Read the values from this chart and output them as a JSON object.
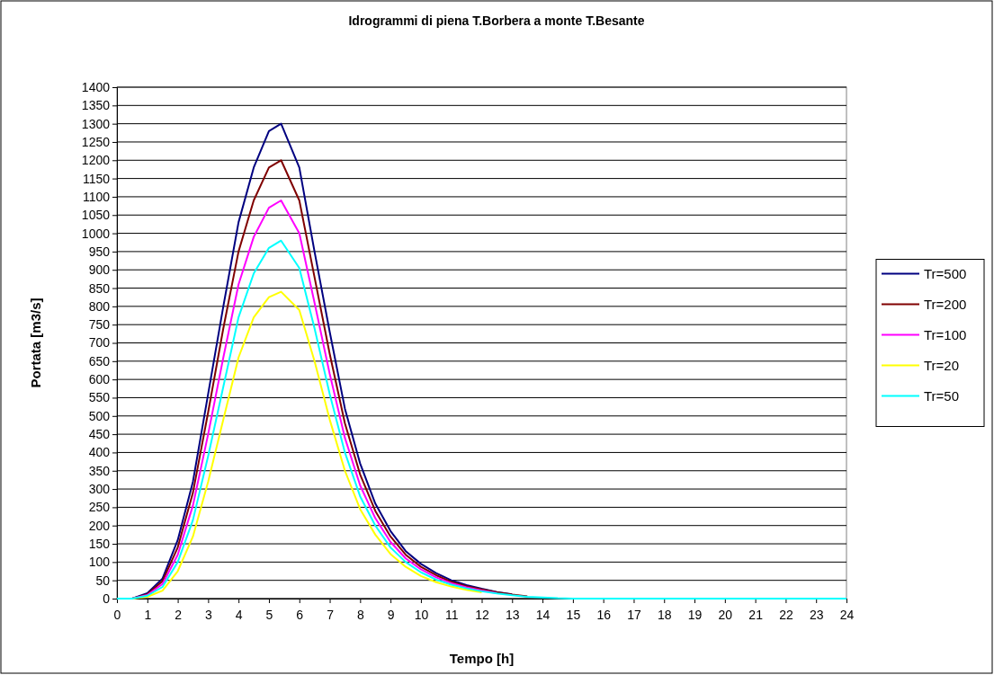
{
  "chart_data": {
    "type": "line",
    "title": "Idrogrammi di piena T.Borbera a monte T.Besante",
    "xlabel": "Tempo [h]",
    "ylabel": "Portata [m3/s]",
    "x": [
      0,
      0.5,
      1,
      1.5,
      2,
      2.5,
      3,
      3.5,
      4,
      4.5,
      5,
      5.4,
      6,
      6.5,
      7,
      7.5,
      8,
      8.5,
      9,
      9.5,
      10,
      10.5,
      11,
      11.5,
      12,
      12.5,
      13,
      13.5,
      14,
      14.5,
      15,
      24
    ],
    "series": [
      {
        "name": "Tr=500",
        "color": "#000080",
        "x": [
          0.5,
          1,
          1.5,
          2,
          2.5,
          3,
          3.5,
          4,
          4.5,
          5,
          5.4,
          6,
          6.5,
          7,
          7.5,
          8,
          8.5,
          9,
          9.5,
          10,
          10.5,
          11,
          11.5,
          12,
          12.5,
          13
        ],
        "values": [
          0,
          15,
          55,
          160,
          320,
          560,
          800,
          1030,
          1180,
          1280,
          1300,
          1180,
          950,
          730,
          520,
          370,
          260,
          185,
          130,
          95,
          70,
          50,
          37,
          27,
          18,
          12
        ]
      },
      {
        "name": "Tr=200",
        "color": "#800000",
        "x": [
          0.5,
          1,
          1.5,
          2,
          2.5,
          3,
          3.5,
          4,
          4.5,
          5,
          5.4,
          6,
          6.5,
          7,
          7.5,
          8,
          8.5,
          9,
          9.5,
          10,
          10.5,
          11,
          11.5,
          12,
          12.5,
          13,
          13.5
        ],
        "values": [
          0,
          12,
          48,
          140,
          290,
          510,
          740,
          950,
          1090,
          1180,
          1200,
          1090,
          880,
          670,
          480,
          340,
          240,
          170,
          120,
          87,
          64,
          46,
          34,
          25,
          17,
          11,
          6
        ]
      },
      {
        "name": "Tr=100",
        "color": "#ff00ff",
        "x": [
          0.5,
          1,
          1.5,
          2,
          2.5,
          3,
          3.5,
          4,
          4.5,
          5,
          5.4,
          6,
          6.5,
          7,
          7.5,
          8,
          8.5,
          9,
          9.5,
          10,
          10.5,
          11,
          11.5,
          12,
          12.5
        ],
        "values": [
          0,
          10,
          40,
          120,
          255,
          450,
          660,
          860,
          990,
          1070,
          1090,
          1000,
          810,
          615,
          440,
          310,
          220,
          155,
          110,
          80,
          58,
          42,
          31,
          22,
          15
        ]
      },
      {
        "name": "Tr=20",
        "color": "#ffff00",
        "x": [
          0.5,
          1,
          1.5,
          2,
          2.5,
          3,
          3.5,
          4,
          4.5,
          5,
          5.4,
          6,
          6.5,
          7,
          7.5,
          8,
          8.5,
          9,
          9.5,
          10,
          10.5,
          11,
          11.5,
          12
        ],
        "values": [
          0,
          5,
          22,
          75,
          170,
          320,
          490,
          660,
          770,
          825,
          840,
          790,
          650,
          490,
          350,
          245,
          175,
          122,
          87,
          62,
          45,
          33,
          24,
          17
        ]
      },
      {
        "name": "Tr=50",
        "color": "#00ffff",
        "values": [
          0,
          0,
          8,
          32,
          100,
          215,
          390,
          580,
          770,
          890,
          960,
          980,
          905,
          740,
          560,
          400,
          280,
          200,
          140,
          100,
          72,
          52,
          38,
          28,
          20,
          14,
          9,
          5,
          3,
          1,
          0,
          0
        ]
      }
    ],
    "xlim": [
      0,
      24
    ],
    "xticks": [
      0,
      1,
      2,
      3,
      4,
      5,
      6,
      7,
      8,
      9,
      10,
      11,
      12,
      13,
      14,
      15,
      16,
      17,
      18,
      19,
      20,
      21,
      22,
      23,
      24
    ],
    "ylim": [
      0,
      1400
    ],
    "yticks": [
      0,
      50,
      100,
      150,
      200,
      250,
      300,
      350,
      400,
      450,
      500,
      550,
      600,
      650,
      700,
      750,
      800,
      850,
      900,
      950,
      1000,
      1050,
      1100,
      1150,
      1200,
      1250,
      1300,
      1350,
      1400
    ],
    "grid": "y",
    "legend": "right",
    "marker": "none",
    "line_style": "solid"
  }
}
